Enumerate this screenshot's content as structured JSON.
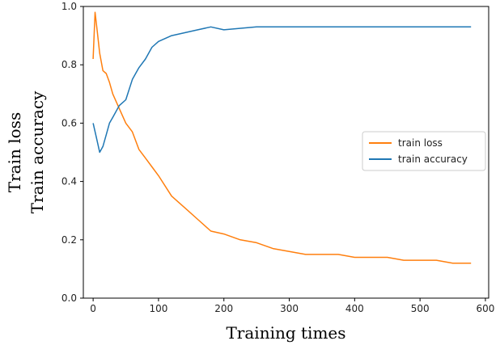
{
  "chart_data": {
    "type": "line",
    "xlabel": "Training times",
    "ylabel": [
      "Train loss",
      "Train accuracy"
    ],
    "xlim": [
      -15,
      605
    ],
    "ylim": [
      0.0,
      1.0
    ],
    "x_ticks": [
      0,
      100,
      200,
      300,
      400,
      500,
      600
    ],
    "x_tick_labels": [
      "0",
      "100",
      "200",
      "300",
      "400",
      "500",
      "600"
    ],
    "y_ticks": [
      0.0,
      0.2,
      0.4,
      0.6,
      0.8,
      1.0
    ],
    "y_tick_labels": [
      "0.0",
      "0.2",
      "0.4",
      "0.6",
      "0.8",
      "1.0"
    ],
    "grid": false,
    "legend_position": "center-right",
    "series": [
      {
        "name": "train loss",
        "color": "#ff7f0e",
        "x": [
          0,
          3,
          6,
          10,
          15,
          20,
          25,
          30,
          40,
          50,
          60,
          70,
          80,
          90,
          100,
          120,
          140,
          160,
          180,
          200,
          225,
          250,
          275,
          300,
          325,
          350,
          375,
          400,
          425,
          450,
          475,
          500,
          525,
          550,
          578
        ],
        "y": [
          0.82,
          0.98,
          0.92,
          0.84,
          0.78,
          0.77,
          0.74,
          0.7,
          0.65,
          0.6,
          0.57,
          0.51,
          0.48,
          0.45,
          0.42,
          0.35,
          0.31,
          0.27,
          0.23,
          0.22,
          0.2,
          0.19,
          0.17,
          0.16,
          0.15,
          0.15,
          0.15,
          0.14,
          0.14,
          0.14,
          0.13,
          0.13,
          0.13,
          0.12,
          0.12
        ]
      },
      {
        "name": "train accuracy",
        "color": "#1f77b4",
        "x": [
          0,
          5,
          10,
          15,
          20,
          25,
          30,
          40,
          50,
          60,
          70,
          80,
          90,
          100,
          120,
          140,
          160,
          180,
          200,
          250,
          300,
          350,
          400,
          450,
          500,
          578
        ],
        "y": [
          0.6,
          0.55,
          0.5,
          0.52,
          0.56,
          0.6,
          0.62,
          0.66,
          0.68,
          0.75,
          0.79,
          0.82,
          0.86,
          0.88,
          0.9,
          0.91,
          0.92,
          0.93,
          0.92,
          0.93,
          0.93,
          0.93,
          0.93,
          0.93,
          0.93,
          0.93
        ]
      }
    ]
  }
}
